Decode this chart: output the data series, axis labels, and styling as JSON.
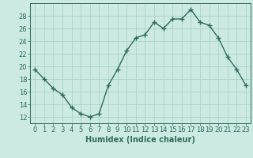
{
  "x": [
    0,
    1,
    2,
    3,
    4,
    5,
    6,
    7,
    8,
    9,
    10,
    11,
    12,
    13,
    14,
    15,
    16,
    17,
    18,
    19,
    20,
    21,
    22,
    23
  ],
  "y": [
    19.5,
    18.0,
    16.5,
    15.5,
    13.5,
    12.5,
    12.0,
    12.5,
    17.0,
    19.5,
    22.5,
    24.5,
    25.0,
    27.0,
    26.0,
    27.5,
    27.5,
    29.0,
    27.0,
    26.5,
    24.5,
    21.5,
    19.5,
    17.0
  ],
  "line_color": "#2e6b5e",
  "marker": "+",
  "marker_size": 4,
  "line_width": 1.0,
  "bg_color": "#cce9e4",
  "grid_color": "#a8d4cc",
  "xlabel": "Humidex (Indice chaleur)",
  "xlabel_fontsize": 7,
  "tick_color": "#2e6b5e",
  "tick_fontsize": 6,
  "ylim": [
    11,
    30
  ],
  "xlim": [
    -0.5,
    23.5
  ],
  "yticks": [
    12,
    14,
    16,
    18,
    20,
    22,
    24,
    26,
    28
  ],
  "xticks": [
    0,
    1,
    2,
    3,
    4,
    5,
    6,
    7,
    8,
    9,
    10,
    11,
    12,
    13,
    14,
    15,
    16,
    17,
    18,
    19,
    20,
    21,
    22,
    23
  ],
  "xtick_labels": [
    "0",
    "1",
    "2",
    "3",
    "4",
    "5",
    "6",
    "7",
    "8",
    "9",
    "10",
    "11",
    "12",
    "13",
    "14",
    "15",
    "16",
    "17",
    "18",
    "19",
    "20",
    "21",
    "22",
    "23"
  ]
}
